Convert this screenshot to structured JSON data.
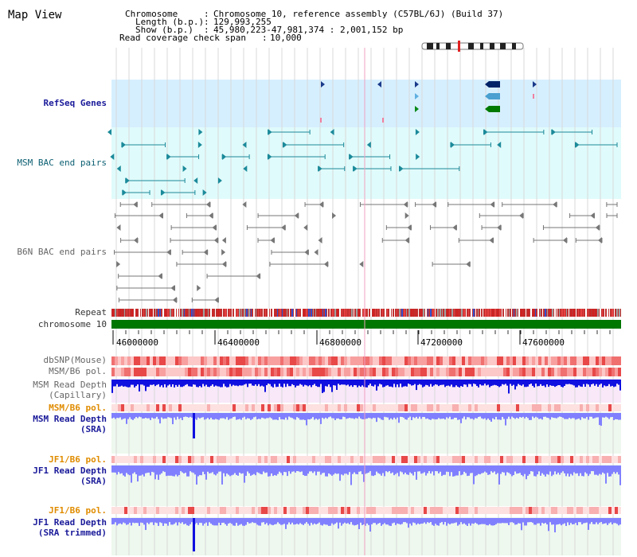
{
  "title": "Map View",
  "header": {
    "chromosome_key": "Chromosome",
    "chromosome_val": "Chromosome 10, reference assembly (C57BL/6J) (Build 37)",
    "length_key": "Length (b.p.)",
    "length_val": "129,993,255",
    "show_key": "Show (b.p.)",
    "show_val": "45,980,223-47,981,374 : 2,001,152 bp",
    "coverage_key": "Read coverage check span",
    "coverage_val": "10,000"
  },
  "tracks": {
    "refseq": "RefSeq Genes",
    "msm_bac": "MSM BAC end pairs",
    "b6n_bac": "B6N BAC end pairs",
    "repeat": "Repeat",
    "chromosome": "chromosome 10",
    "dbsnp": "dbSNP(Mouse)",
    "msm_pol": "MSM/B6 pol.",
    "msm_depth_cap_1": "MSM Read Depth",
    "msm_depth_cap_2": "(Capillary)",
    "msm_pol_2": "MSM/B6 pol.",
    "msm_depth_sra_1": "MSM Read Depth",
    "msm_depth_sra_2": "(SRA)",
    "jf1_pol": "JF1/B6 pol.",
    "jf1_depth_sra_1": "JF1 Read Depth",
    "jf1_depth_sra_2": "(SRA)",
    "jf1_pol_2": "JF1/B6 pol.",
    "jf1_depth_trim_1": "JF1 Read Depth",
    "jf1_depth_trim_2": "(SRA trimmed)"
  },
  "axis_ticks": [
    "46000000",
    "46400000",
    "46800000",
    "47200000",
    "47600000"
  ],
  "colors": {
    "refseq_bg": "#d6efff",
    "msm_bg": "#e0fbfb",
    "msm_feature": "#1b8a9a",
    "b6n_feature": "#777777",
    "chromosome_bar": "#007700",
    "depth_blue": "#1010e0",
    "depth_light": "#8080ff"
  }
}
